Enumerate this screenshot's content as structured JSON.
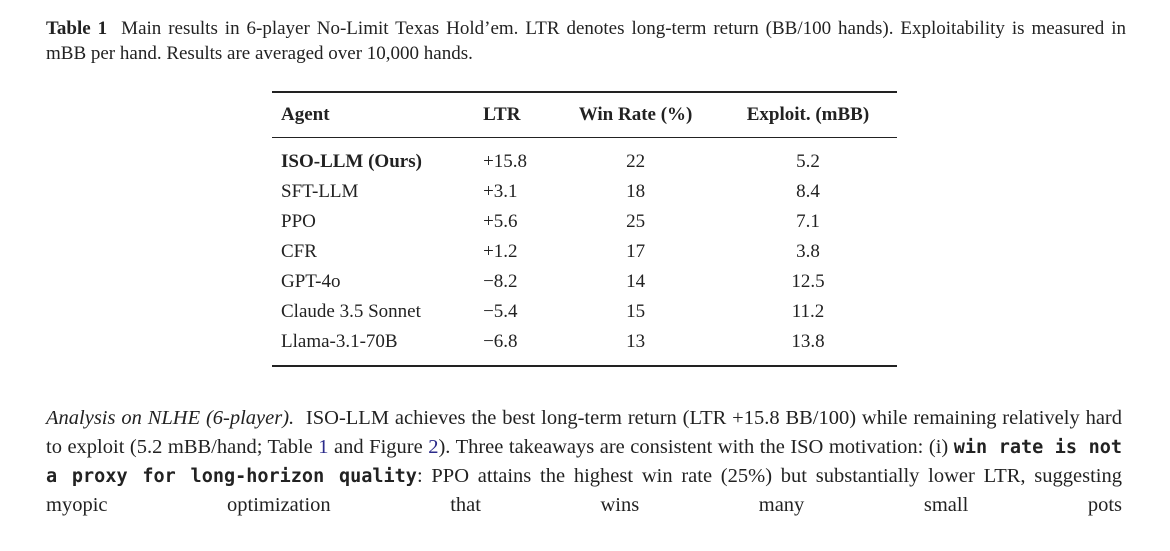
{
  "caption": {
    "label": "Table 1",
    "text": "Main results in 6-player No-Limit Texas Hold’em. LTR denotes long-term return (BB/100 hands). Exploitability is measured in mBB per hand. Results are averaged over 10,000 hands."
  },
  "table": {
    "headers": [
      "Agent",
      "LTR",
      "Win Rate (%)",
      "Exploit. (mBB)"
    ],
    "rows": [
      {
        "agent": "ISO-LLM (Ours)",
        "ltr": "+15.8",
        "win": "22",
        "exploit": "5.2"
      },
      {
        "agent": "SFT-LLM",
        "ltr": "+3.1",
        "win": "18",
        "exploit": "8.4"
      },
      {
        "agent": "PPO",
        "ltr": "+5.6",
        "win": "25",
        "exploit": "7.1"
      },
      {
        "agent": "CFR",
        "ltr": "+1.2",
        "win": "17",
        "exploit": "3.8"
      },
      {
        "agent": "GPT-4o",
        "ltr": "−8.2",
        "win": "14",
        "exploit": "12.5"
      },
      {
        "agent": "Claude 3.5 Sonnet",
        "ltr": "−5.4",
        "win": "15",
        "exploit": "11.2"
      },
      {
        "agent": "Llama-3.1-70B",
        "ltr": "−6.8",
        "win": "13",
        "exploit": "13.8"
      }
    ]
  },
  "paragraph": {
    "heading": "Analysis on NLHE (6-player).",
    "part1": "ISO-LLM achieves the best long-term return (LTR +15.8 BB/100) while remaining relatively hard to exploit (5.2 mBB/hand; Table ",
    "ref_table": "1",
    "part2": " and Figure ",
    "ref_figure": "2",
    "part3": "). Three takeaways are consistent with the ISO motivation: (i) ",
    "bold": "win rate is not a proxy for long-horizon quality",
    "part4": ": PPO attains the highest win rate (25%) but substantially lower LTR, suggesting myopic optimization that wins many small pots"
  }
}
